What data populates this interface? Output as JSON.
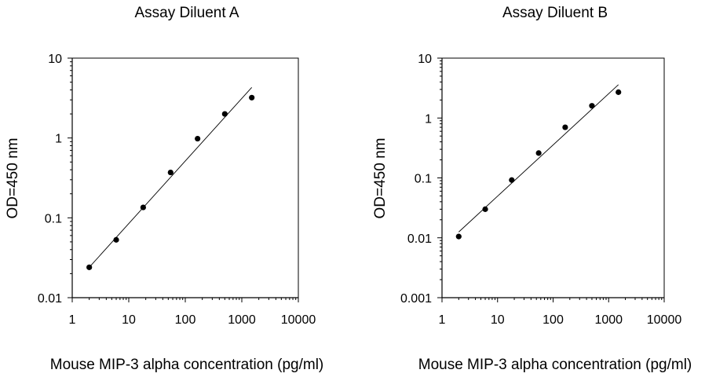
{
  "chart_data": [
    {
      "type": "scatter",
      "title": "Assay Diluent A",
      "xlabel": "Mouse MIP-3 alpha concentration (pg/ml)",
      "ylabel": "OD=450 nm",
      "xscale": "log",
      "yscale": "log",
      "xlim": [
        1,
        10000
      ],
      "ylim": [
        0.01,
        10
      ],
      "xticks": [
        "1",
        "10",
        "100",
        "1000",
        "10000"
      ],
      "yticks": [
        "0.01",
        "0.1",
        "1",
        "10"
      ],
      "grid": false,
      "frame": "left-bottom-axes-with-box",
      "series": [
        {
          "points": [
            [
              2,
              0.024
            ],
            [
              6,
              0.053
            ],
            [
              18,
              0.135
            ],
            [
              55,
              0.37
            ],
            [
              165,
              0.98
            ],
            [
              500,
              2.0
            ],
            [
              1500,
              3.2
            ]
          ],
          "fit_line": [
            [
              2,
              0.024
            ],
            [
              1500,
              4.3
            ]
          ]
        }
      ]
    },
    {
      "type": "scatter",
      "title": "Assay Diluent B",
      "xlabel": "Mouse MIP-3 alpha concentration (pg/ml)",
      "ylabel": "OD=450 nm",
      "xscale": "log",
      "yscale": "log",
      "xlim": [
        1,
        10000
      ],
      "ylim": [
        0.001,
        10
      ],
      "xticks": [
        "1",
        "10",
        "100",
        "1000",
        "10000"
      ],
      "yticks": [
        "0.001",
        "0.01",
        "0.1",
        "1",
        "10"
      ],
      "grid": false,
      "frame": "left-bottom-axes-with-box",
      "series": [
        {
          "points": [
            [
              2,
              0.0105
            ],
            [
              6,
              0.03
            ],
            [
              18,
              0.092
            ],
            [
              55,
              0.26
            ],
            [
              165,
              0.7
            ],
            [
              500,
              1.6
            ],
            [
              1500,
              2.7
            ]
          ],
          "fit_line": [
            [
              2,
              0.0125
            ],
            [
              1500,
              3.6
            ]
          ]
        }
      ]
    }
  ]
}
